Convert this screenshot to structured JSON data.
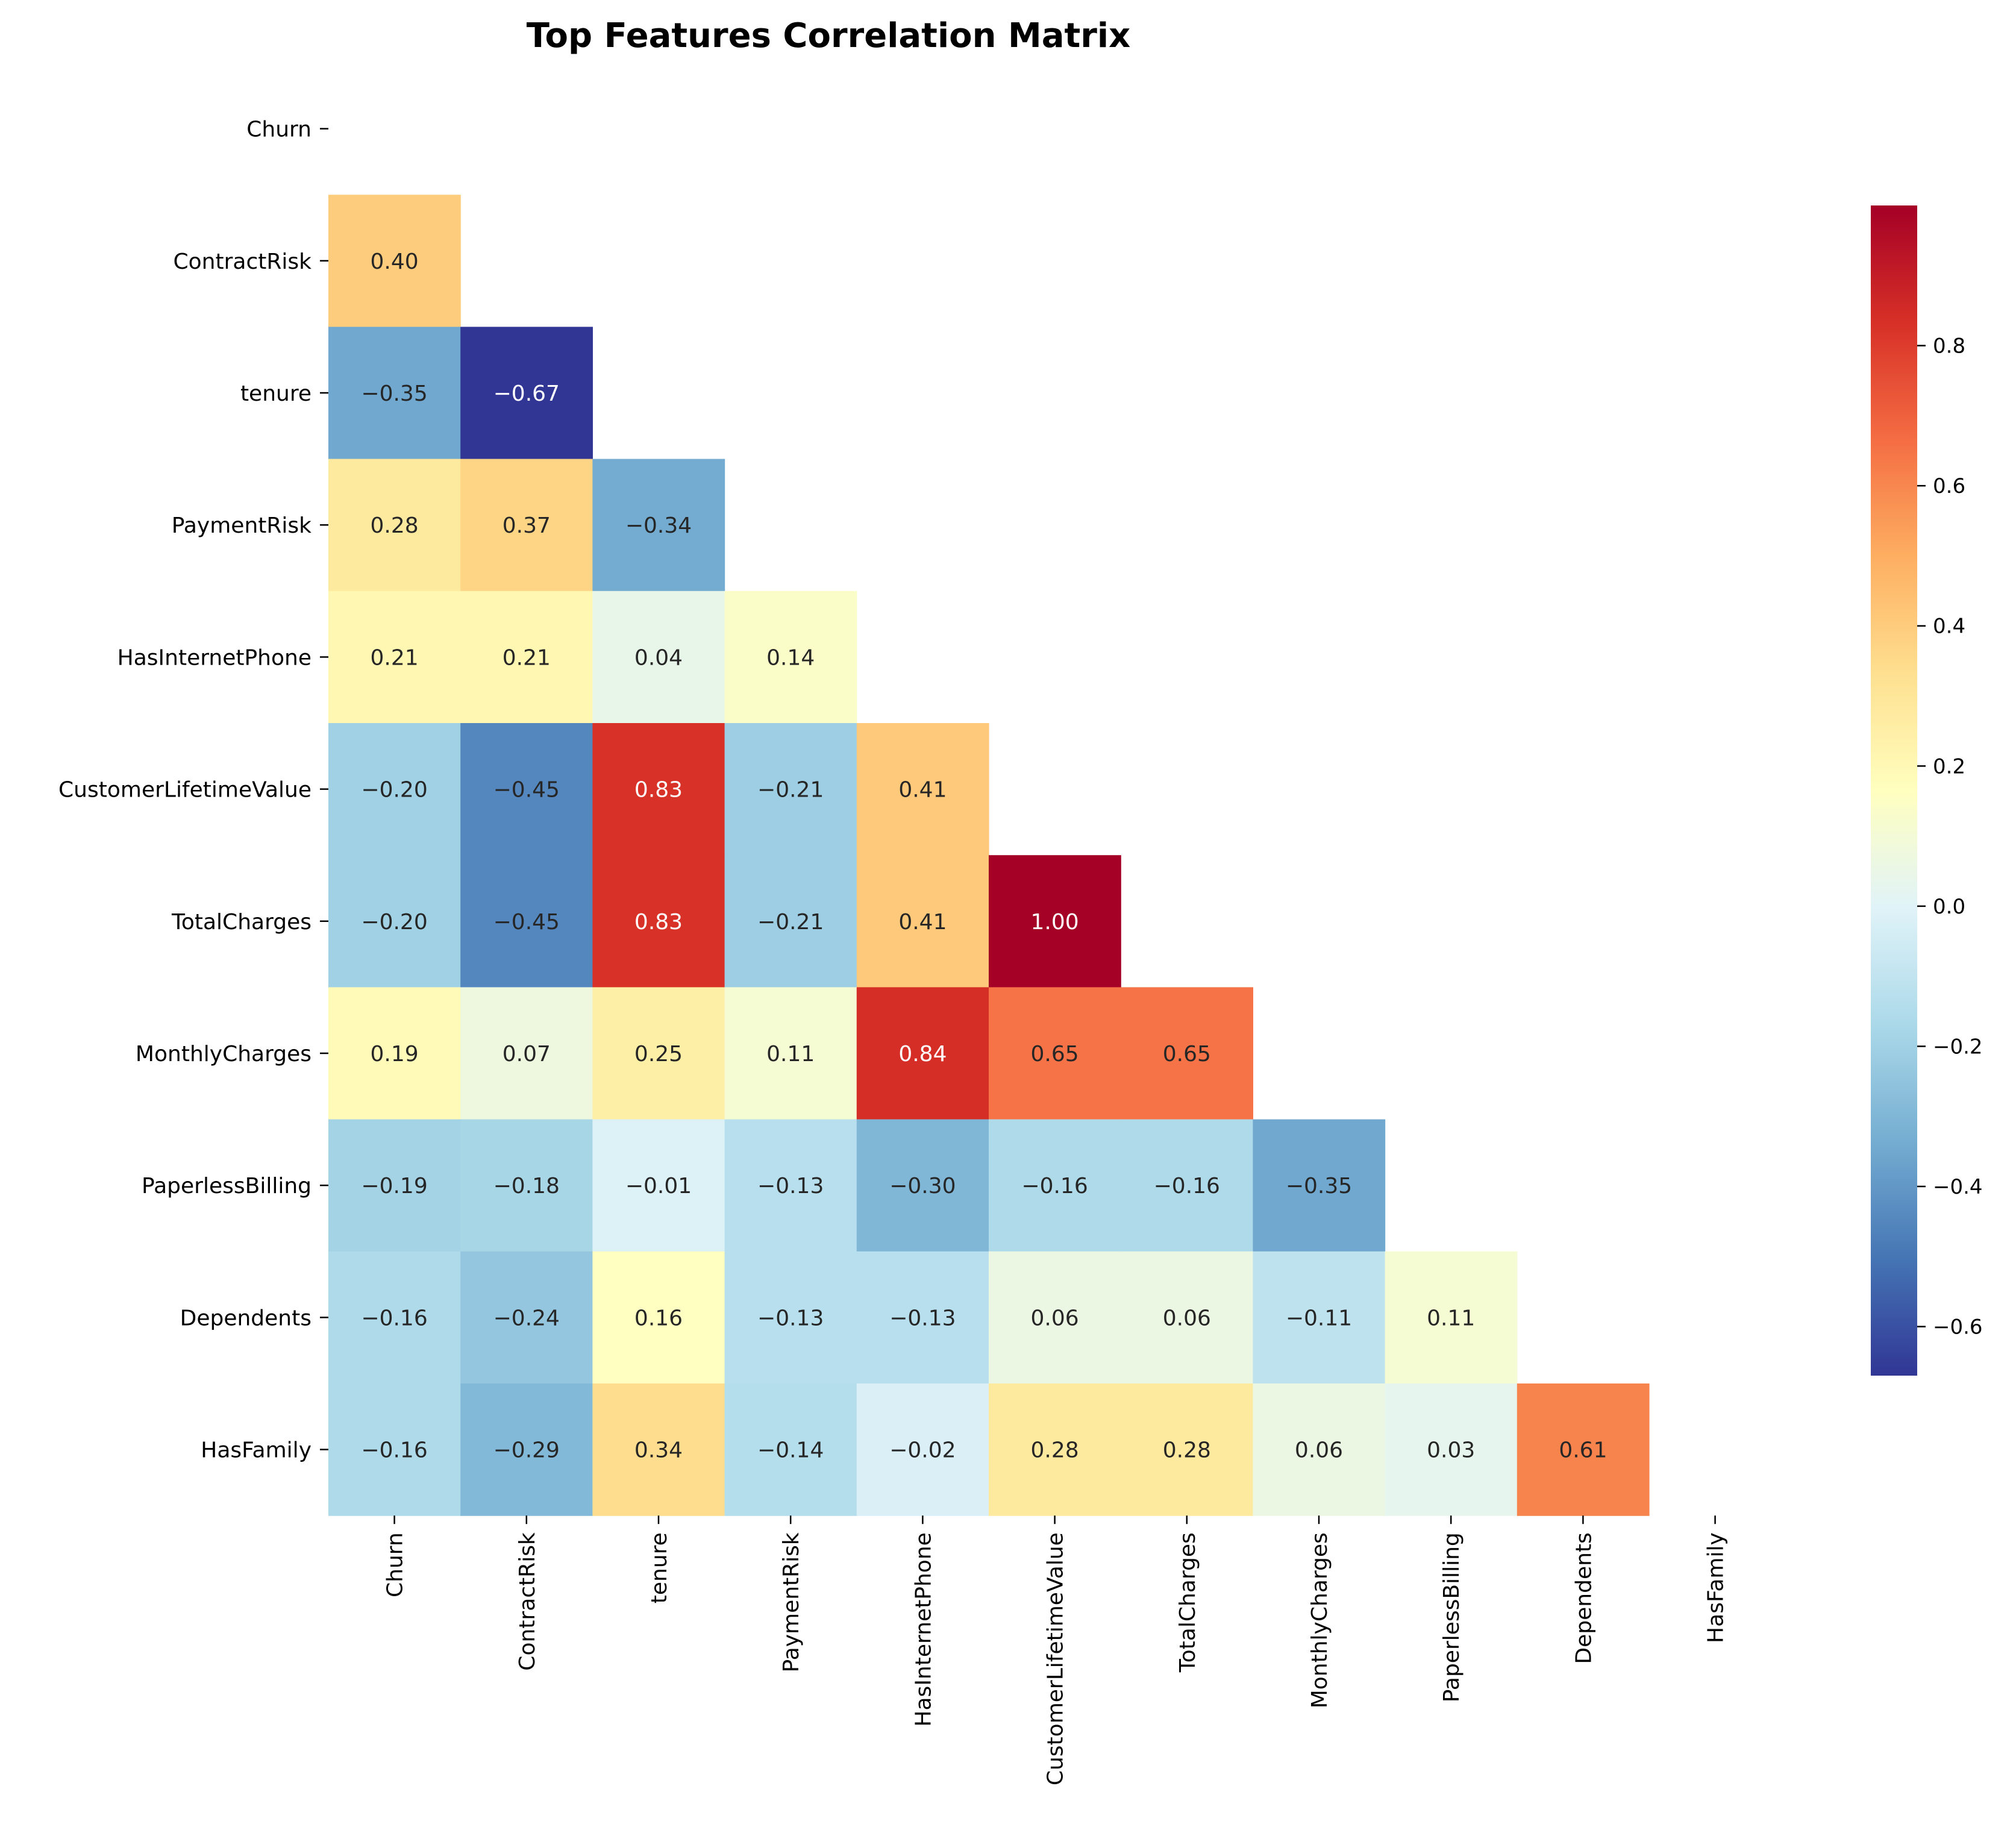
{
  "chart_data": {
    "type": "heatmap",
    "title": "Top Features Correlation Matrix",
    "variables": [
      "Churn",
      "ContractRisk",
      "tenure",
      "PaymentRisk",
      "HasInternetPhone",
      "CustomerLifetimeValue",
      "TotalCharges",
      "MonthlyCharges",
      "PaperlessBilling",
      "Dependents",
      "HasFamily"
    ],
    "mask": "upper-triangle-including-diagonal",
    "values_format": "two-decimal",
    "lower_triangle": [
      [],
      [
        0.4
      ],
      [
        -0.35,
        -0.67
      ],
      [
        0.28,
        0.37,
        -0.34
      ],
      [
        0.21,
        0.21,
        0.04,
        0.14
      ],
      [
        -0.2,
        -0.45,
        0.83,
        -0.21,
        0.41
      ],
      [
        -0.2,
        -0.45,
        0.83,
        -0.21,
        0.41,
        1.0
      ],
      [
        0.19,
        0.07,
        0.25,
        0.11,
        0.84,
        0.65,
        0.65
      ],
      [
        -0.19,
        -0.18,
        -0.01,
        -0.13,
        -0.3,
        -0.16,
        -0.16,
        -0.35
      ],
      [
        -0.16,
        -0.24,
        0.16,
        -0.13,
        -0.13,
        0.06,
        0.06,
        -0.11,
        0.11
      ],
      [
        -0.16,
        -0.29,
        0.34,
        -0.14,
        -0.02,
        0.28,
        0.28,
        0.06,
        0.03,
        0.61
      ]
    ],
    "colorbar": {
      "colormap": "RdYlBu_r",
      "range": [
        -0.67,
        1.0
      ],
      "ticks": [
        -0.6,
        -0.4,
        -0.2,
        0.0,
        0.2,
        0.4,
        0.6,
        0.8
      ],
      "tick_labels": [
        "−0.6",
        "−0.4",
        "−0.2",
        "0.0",
        "0.2",
        "0.4",
        "0.6",
        "0.8"
      ]
    }
  }
}
